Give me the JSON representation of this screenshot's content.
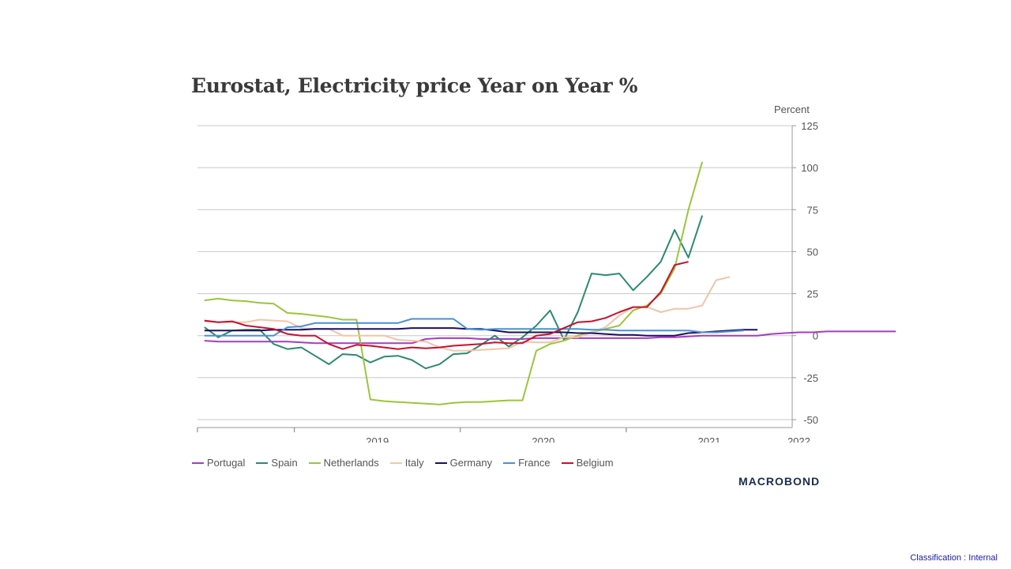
{
  "chart_data": {
    "type": "line",
    "title": "Eurostat, Electricity price Year on Year %",
    "ylabel": "Percent",
    "ylim": [
      -50,
      125
    ],
    "yticks": [
      125,
      100,
      75,
      50,
      25,
      0,
      -25,
      -50
    ],
    "xlim": [
      2018.416,
      2022.0
    ],
    "x_year_labels": [
      {
        "label": "2019",
        "x": 2019.5
      },
      {
        "label": "2020",
        "x": 2020.5
      },
      {
        "label": "2021",
        "x": 2021.5
      },
      {
        "label": "2022",
        "x": 2022.04
      }
    ],
    "x_year_ticks": [
      2018.416,
      2019.0,
      2020.0,
      2021.0
    ],
    "x_start": 2018.458,
    "x_step": 0.08333,
    "grid": true,
    "legend_position": "bottom-left",
    "series": [
      {
        "name": "Portugal",
        "color": "#a63cc2",
        "values": [
          -3,
          -3.5,
          -3.5,
          -3.5,
          -3.5,
          -3.5,
          -3.5,
          -4,
          -4.5,
          -4.5,
          -4.5,
          -4.5,
          -4.5,
          -4.5,
          -4.5,
          -4.5,
          -2,
          -1.5,
          -1.5,
          -1.5,
          -2,
          -2,
          -2,
          -2,
          -1.5,
          -1.5,
          -1.5,
          -1.5,
          -1.5,
          -1.5,
          -1.5,
          -1.5,
          -1.5,
          -1,
          -1,
          -0.5,
          0,
          0,
          0,
          0,
          0,
          1,
          1.5,
          2,
          2,
          2.5,
          2.5,
          2.5,
          2.5,
          2.5,
          2.5
        ]
      },
      {
        "name": "Spain",
        "color": "#2d8a6e",
        "values": [
          5,
          -1,
          3,
          3.5,
          3.5,
          -5,
          -8,
          -7,
          -12,
          -17,
          -11,
          -11.5,
          -16,
          -12.5,
          -12,
          -14.5,
          -19.5,
          -17,
          -11,
          -10.5,
          -5.5,
          0,
          -6.5,
          -1,
          6,
          15,
          -2.5,
          14,
          37,
          36,
          37,
          27,
          35,
          44,
          63,
          46.5,
          71.5
        ]
      },
      {
        "name": "Netherlands",
        "color": "#9bc53d",
        "values": [
          21,
          22,
          21,
          20.5,
          19.5,
          19,
          13.5,
          13,
          12,
          11,
          9.5,
          9.5,
          -38,
          -39,
          -39.5,
          -40,
          -40.5,
          -41,
          -40,
          -39.5,
          -39.5,
          -39,
          -38.5,
          -38.5,
          -9,
          -5,
          -3,
          0,
          2,
          4,
          6,
          15,
          18,
          25,
          40,
          75,
          103.5
        ]
      },
      {
        "name": "Italy",
        "color": "#f2c4a8",
        "values": [
          8.5,
          8,
          8,
          8,
          9.5,
          9,
          8.5,
          4.5,
          4,
          4,
          0,
          0,
          0,
          0,
          -2.5,
          -3,
          -3.5,
          -7,
          -9,
          -9,
          -8.5,
          -8,
          -7.5,
          -3.5,
          -4,
          -4,
          -1,
          -1,
          2,
          5,
          12,
          17,
          17,
          14,
          16,
          16,
          18,
          33,
          35
        ]
      },
      {
        "name": "Germany",
        "color": "#1a1060",
        "values": [
          3,
          3,
          3,
          3,
          3,
          3.5,
          3.5,
          3.5,
          4,
          4,
          4,
          4,
          4,
          4,
          4,
          4.5,
          4.5,
          4.5,
          4.5,
          4,
          4,
          3,
          2,
          2,
          2,
          2,
          2,
          1.5,
          1.5,
          1,
          0.5,
          0.5,
          0,
          0,
          0,
          1.5,
          2,
          2.5,
          3,
          3.5,
          3.5
        ]
      },
      {
        "name": "France",
        "color": "#4a8fd4",
        "values": [
          0,
          0,
          0,
          0,
          0,
          0,
          5,
          5.5,
          7.5,
          7.5,
          7.5,
          7.5,
          7.5,
          7.5,
          7.5,
          10,
          10,
          10,
          10,
          4,
          3.5,
          4,
          4,
          4,
          4,
          4,
          4,
          4,
          3.5,
          3.5,
          3,
          3,
          3,
          3,
          3,
          3,
          2,
          2,
          2.5,
          3
        ]
      },
      {
        "name": "Belgium",
        "color": "#c8102e",
        "values": [
          9,
          8,
          8.5,
          6,
          5,
          4,
          1,
          0,
          0,
          -5,
          -8,
          -5.5,
          -6,
          -7,
          -8,
          -7,
          -7.5,
          -7,
          -6,
          -5.5,
          -5,
          -4,
          -4.5,
          -4.5,
          0,
          1,
          4.5,
          8,
          8.5,
          10.5,
          14,
          17,
          17,
          26,
          42,
          44
        ]
      }
    ]
  },
  "legend": [
    "Portugal",
    "Spain",
    "Netherlands",
    "Italy",
    "Germany",
    "France",
    "Belgium"
  ],
  "brand": {
    "text": "MACROBOND"
  },
  "footer": {
    "classification": "Classification : Internal"
  }
}
